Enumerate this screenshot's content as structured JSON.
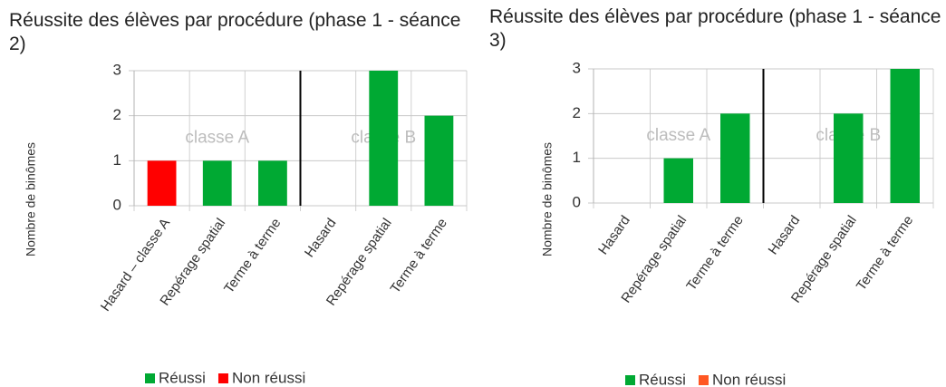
{
  "chart_data": [
    {
      "type": "bar",
      "stacked": true,
      "title": "Réussite des élèves par procédure (phase 1 - séance 2)",
      "y_label": "Nombre de binômes",
      "categories": [
        "Hasard – classe A",
        "Repérage spatial",
        "Terme à terme",
        "Hasard",
        "Repérage spatial",
        "Terme à terme"
      ],
      "series": [
        {
          "name": "Réussi",
          "color": "#00a933",
          "values": [
            0,
            1,
            1,
            0,
            3,
            2
          ]
        },
        {
          "name": "Non réussi",
          "color": "#ff0000",
          "values": [
            1,
            0,
            0,
            0,
            0,
            0
          ]
        }
      ],
      "annotations": [
        "classe A",
        "classe B"
      ],
      "ylim": [
        0,
        3
      ],
      "yticks": [
        0,
        1,
        2,
        3
      ],
      "grid": true,
      "legend": "bottom"
    },
    {
      "type": "bar",
      "stacked": true,
      "title": "Réussite des élèves par procédure (phase 1 - séance 3)",
      "y_label": "Nombre de binômes",
      "categories": [
        "Hasard",
        "Repérage spatial",
        "Terme à terme",
        "Hasard",
        "Repérage spatial",
        "Terme à terme"
      ],
      "series": [
        {
          "name": "Réussi",
          "color": "#00a933",
          "values": [
            0,
            1,
            2,
            0,
            2,
            3
          ]
        },
        {
          "name": "Non réussi",
          "color": "#ff5722",
          "values": [
            0,
            0,
            0,
            0,
            0,
            0
          ]
        }
      ],
      "annotations": [
        "classe A",
        "classe B"
      ],
      "ylim": [
        0,
        3
      ],
      "yticks": [
        0,
        1,
        2,
        3
      ],
      "grid": true,
      "legend": "bottom"
    }
  ]
}
